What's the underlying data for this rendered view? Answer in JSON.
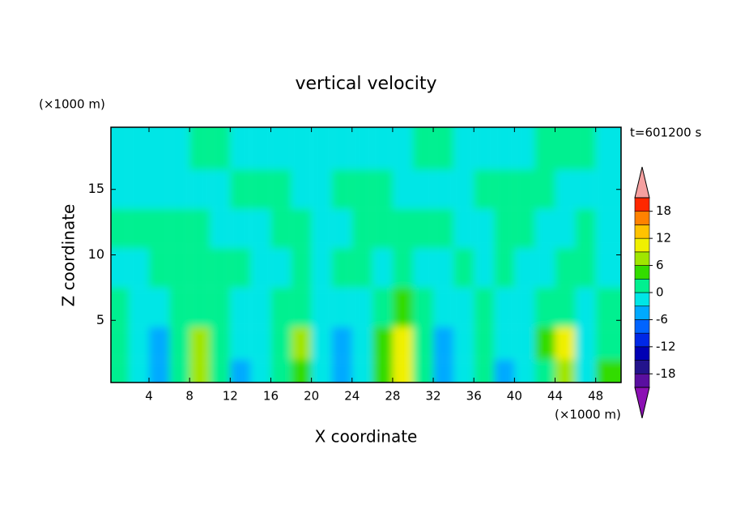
{
  "chart_data": {
    "type": "contour",
    "title": "vertical velocity",
    "xlabel": "X coordinate",
    "ylabel": "Z coordinate",
    "x_unit": "(×1000 m)",
    "y_unit": "(×1000 m)",
    "annotation": "t=601200 s",
    "xlim": [
      0.25,
      50.5
    ],
    "ylim": [
      0.25,
      19.75
    ],
    "xticks": [
      4,
      8,
      12,
      16,
      20,
      24,
      28,
      32,
      36,
      40,
      44,
      48
    ],
    "yticks": [
      5,
      10,
      15
    ],
    "x": [
      1,
      3,
      5,
      7,
      9,
      11,
      13,
      15,
      17,
      19,
      21,
      23,
      25,
      27,
      29,
      31,
      33,
      35,
      37,
      39,
      41,
      43,
      45,
      47,
      49
    ],
    "z": [
      1,
      3,
      6,
      9,
      12,
      15,
      18
    ],
    "values": [
      [
        1,
        -1,
        -4,
        1,
        7,
        2,
        -4,
        -2,
        1,
        5,
        -1,
        -5,
        -3,
        3,
        9,
        2,
        -4,
        -1,
        2,
        -4,
        -1,
        2,
        8,
        -1,
        3
      ],
      [
        1,
        -1,
        -4,
        2,
        6,
        1,
        -3,
        -2,
        1,
        6,
        -1,
        -4,
        -3,
        4,
        10,
        2,
        -4,
        -2,
        1,
        -3,
        -1,
        3,
        9,
        -1,
        2
      ],
      [
        2,
        -1,
        -1,
        1,
        2,
        0.5,
        -1,
        -1,
        1,
        2,
        -1,
        -1,
        -1,
        1,
        3,
        1,
        -1,
        -1,
        1,
        -1,
        -1,
        1,
        2,
        -1,
        1
      ],
      [
        -1,
        -1,
        1,
        1,
        1,
        1,
        1,
        -1,
        -1,
        1,
        -1,
        1,
        1,
        -1,
        1,
        -1,
        -1,
        1,
        -1,
        1,
        -1,
        -1,
        1,
        1,
        -1
      ],
      [
        1,
        1,
        1,
        1,
        1,
        -1,
        -1,
        -1,
        1,
        1,
        -1,
        -1,
        1,
        1,
        1,
        1,
        1,
        -1,
        -1,
        1,
        1,
        -1,
        -1,
        1,
        -1
      ],
      [
        -1,
        -1,
        -1,
        -1,
        -1,
        -1,
        1,
        1,
        1,
        -1,
        -1,
        1,
        1,
        1,
        -1,
        -1,
        -1,
        -1,
        1,
        1,
        1,
        1,
        -1,
        -1,
        -1
      ],
      [
        -1,
        -1,
        -1,
        -1,
        1,
        1,
        -1,
        -1,
        -1,
        -1,
        -1,
        -1,
        -1,
        -1,
        -1,
        1,
        1,
        -1,
        -1,
        -1,
        -1,
        1,
        1,
        1,
        -1
      ]
    ],
    "levels": [
      -21,
      -18,
      -15,
      -12,
      -9,
      -6,
      -3,
      0,
      3,
      6,
      9,
      12,
      15,
      18,
      21
    ],
    "level_colors": [
      "#5a0fa0",
      "#23138c",
      "#0000b4",
      "#0028e6",
      "#0064ff",
      "#00aaff",
      "#00e6e6",
      "#00f090",
      "#33dc00",
      "#a0e600",
      "#f0f000",
      "#ffc300",
      "#ff8200",
      "#ff2800"
    ],
    "extend_colors": {
      "under": "#8c10b4",
      "over": "#f5a0a0"
    },
    "colorbar_ticks": [
      -18,
      -12,
      -6,
      0,
      6,
      12,
      18
    ]
  }
}
